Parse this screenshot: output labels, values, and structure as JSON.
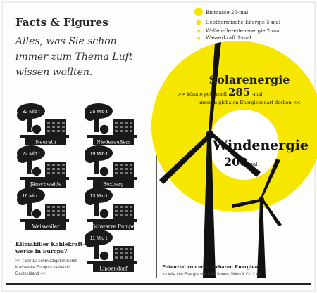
{
  "header": {
    "title": "Facts & Figures",
    "subtitle_lines": [
      "Alles, was Sie schon",
      "immer zum Thema Luft",
      "wissen wollten."
    ]
  },
  "plants": [
    {
      "amount": "32 Mio t",
      "name": "Neurath"
    },
    {
      "amount": "25 Mio t",
      "name": "Niederaußem"
    },
    {
      "amount": "22 Mio t",
      "name": "Jänschwalde"
    },
    {
      "amount": "19 Mio t",
      "name": "Boxberg"
    },
    {
      "amount": "16 Mio t",
      "name": "Weisweiler"
    },
    {
      "amount": "13 Mio t",
      "name": "Schwarze Pumpe"
    },
    {
      "amount": "11 Mio t",
      "name": "Lippendorf"
    }
  ],
  "coal_note": {
    "question_lines": [
      "Klimakiller Kohlekraft-",
      "werke in Europa?"
    ],
    "answer_lines": [
      ">> 7 der 10 schmutzigsten Kohle-",
      "kraftwerke Europas stehen in",
      "Deutschland <<"
    ]
  },
  "legend": [
    "Biomasse 20-mal",
    "Geothermische Energie 5-mal",
    "Wellen-Gezeitenenergie 2-mal",
    "Wasserkraft 1-mal"
  ],
  "solar": {
    "title": "Solarenergie",
    "line1_pre": ">> könnte potenziell",
    "factor": "285",
    "line1_post": "-mal",
    "line2": "unseren globalen Energiebedarf decken <<"
  },
  "wind": {
    "title": "Windenergie",
    "factor": "200",
    "suffix": "-mal"
  },
  "renewables_note": {
    "question": "Potenzial von erneuerbaren Energien?",
    "answer": ">> Wie viel Energie steckt in Sonne, Wind & Co.? <<"
  }
}
